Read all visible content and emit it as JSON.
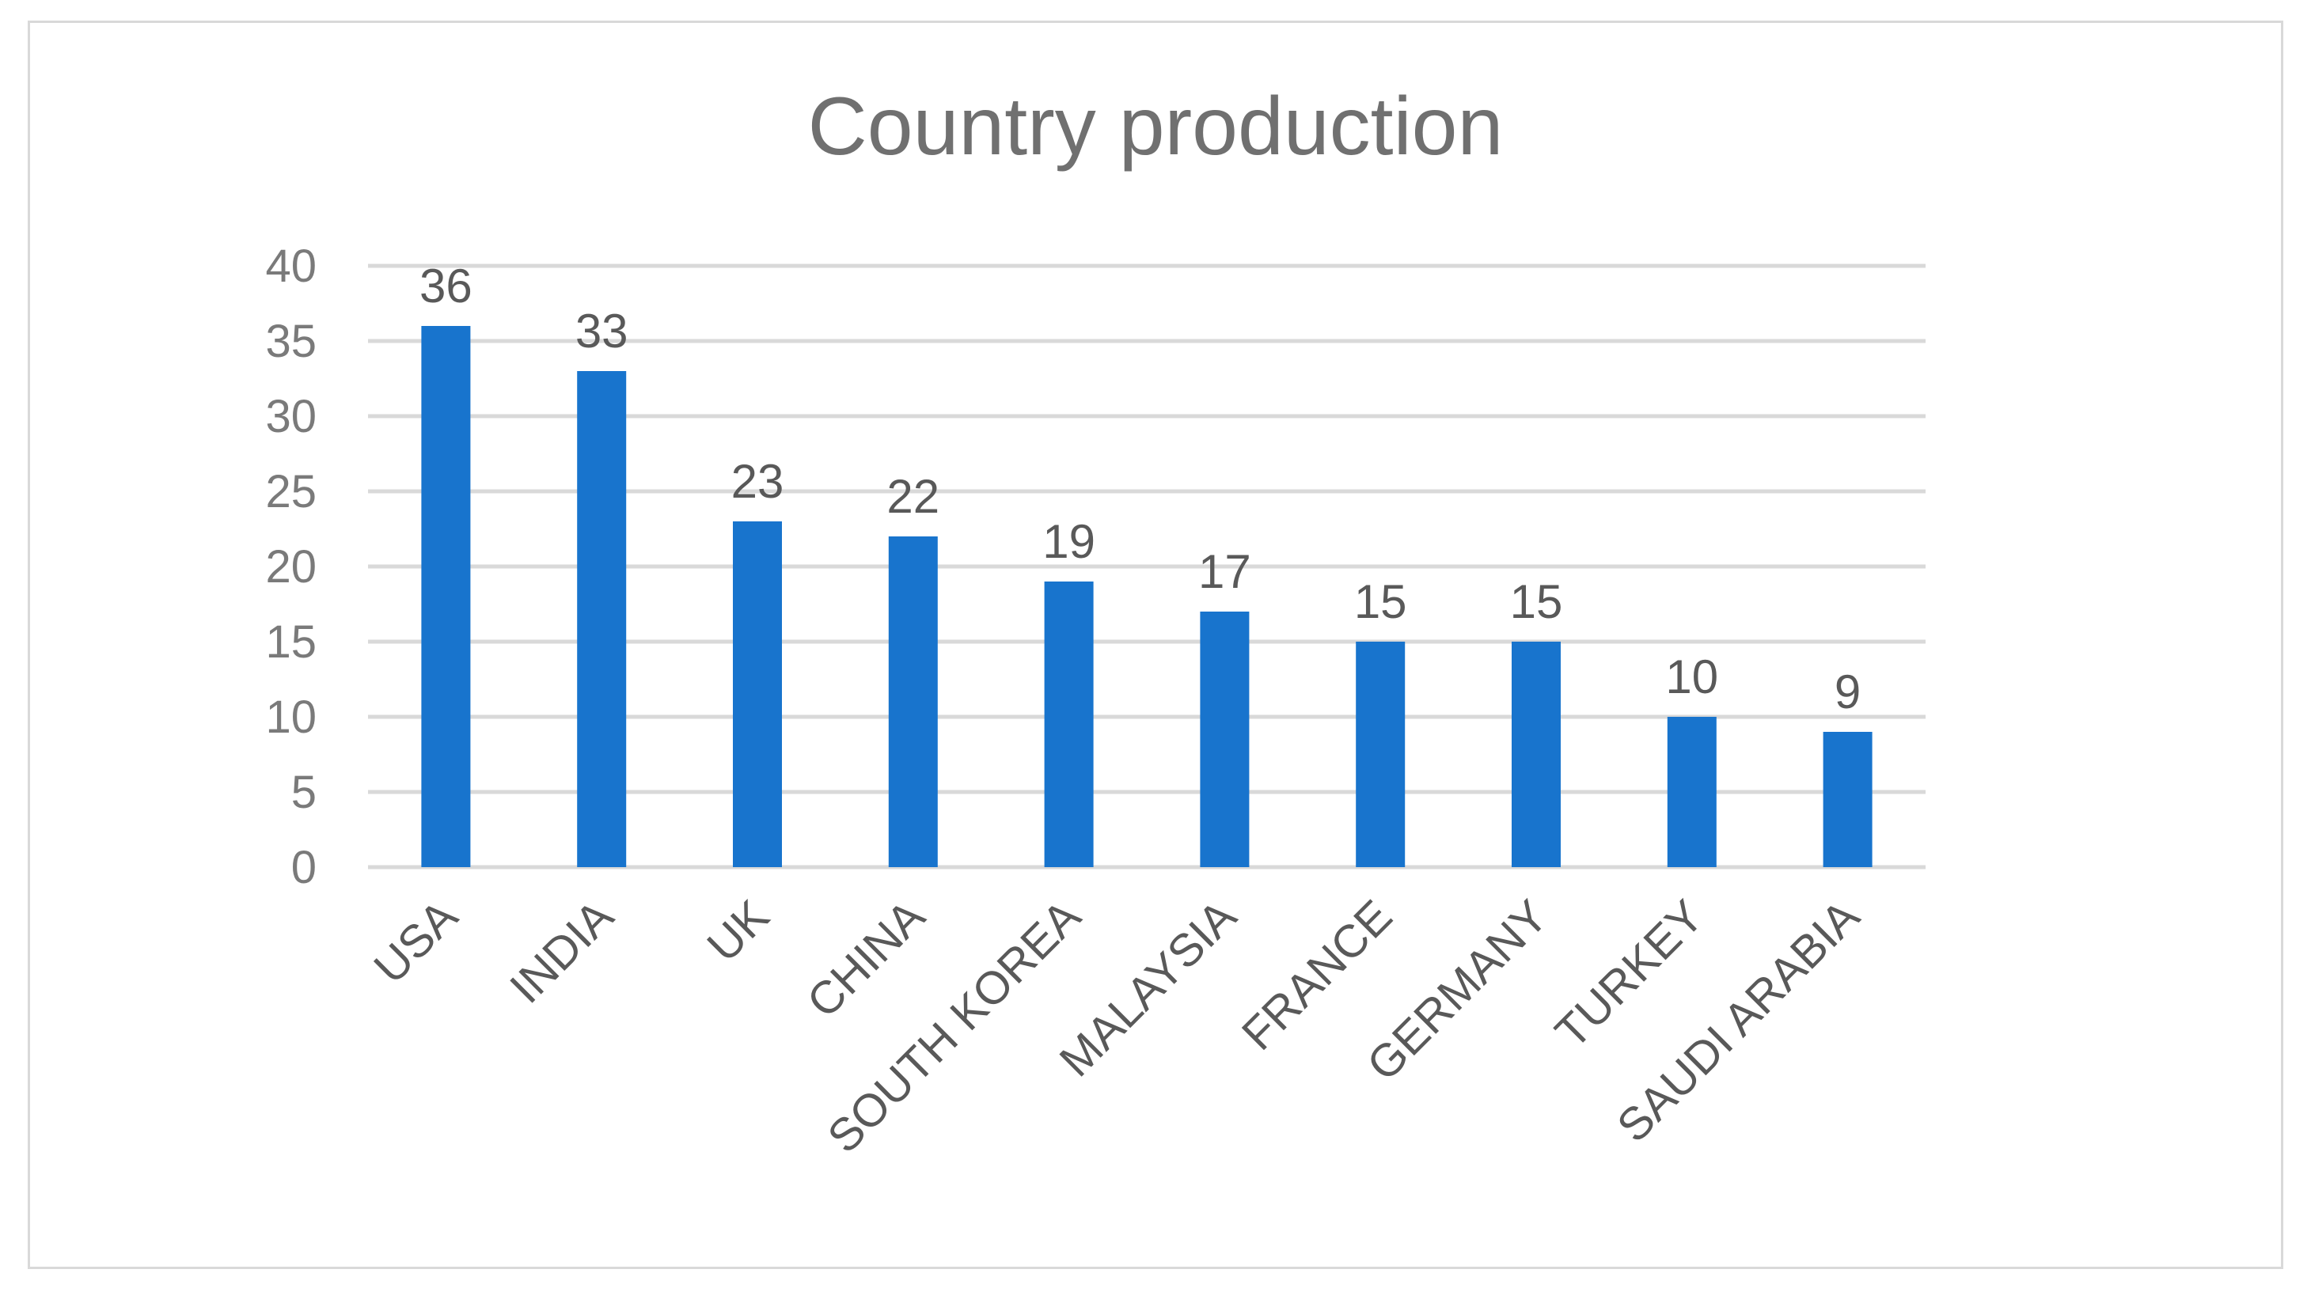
{
  "chart_data": {
    "type": "bar",
    "title": "Country production",
    "xlabel": "",
    "ylabel": "",
    "categories": [
      "USA",
      "INDIA",
      "UK",
      "CHINA",
      "SOUTH KOREA",
      "MALAYSIA",
      "FRANCE",
      "GERMANY",
      "TURKEY",
      "SAUDI ARABIA"
    ],
    "values": [
      36,
      33,
      23,
      22,
      19,
      17,
      15,
      15,
      10,
      9
    ],
    "ylim": [
      0,
      40
    ],
    "yticks": [
      0,
      5,
      10,
      15,
      20,
      25,
      30,
      35,
      40
    ],
    "grid": true,
    "legend": "none",
    "data_labels": true,
    "category_label_rotation": -45,
    "bar_color": "#1874CD",
    "gridline_color": "#d9d9d9",
    "text_color": "#595959"
  }
}
